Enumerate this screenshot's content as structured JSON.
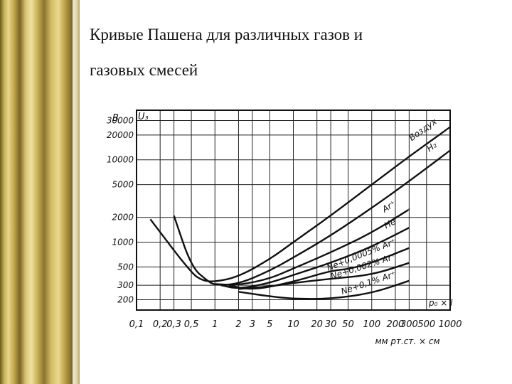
{
  "slide": {
    "title_line1": "Кривые Пашена для различных газов и",
    "title_line2": "газовых смесей"
  },
  "chart_data": {
    "type": "line",
    "title": "Кривые Пашена для различных газов и газовых смесей",
    "x_scale": "log",
    "y_scale": "log",
    "xlim": [
      0.1,
      1000
    ],
    "ylim": [
      150,
      40000
    ],
    "ylabel_unit": "В",
    "ylabel": "U₃",
    "xlabel_top": "p₀ × l",
    "xlabel_bottom": "мм рт.ст. × см",
    "x_ticks": [
      {
        "v": 0.1,
        "t": "0,1"
      },
      {
        "v": 0.2,
        "t": "0,2"
      },
      {
        "v": 0.3,
        "t": "0,3"
      },
      {
        "v": 0.5,
        "t": "0,5"
      },
      {
        "v": 1,
        "t": "1"
      },
      {
        "v": 2,
        "t": "2"
      },
      {
        "v": 3,
        "t": "3"
      },
      {
        "v": 5,
        "t": "5"
      },
      {
        "v": 10,
        "t": "10"
      },
      {
        "v": 20,
        "t": "20"
      },
      {
        "v": 30,
        "t": "30"
      },
      {
        "v": 50,
        "t": "50"
      },
      {
        "v": 100,
        "t": "100"
      },
      {
        "v": 200,
        "t": "200"
      },
      {
        "v": 300,
        "t": "300"
      },
      {
        "v": 500,
        "t": "500"
      },
      {
        "v": 1000,
        "t": "1000"
      }
    ],
    "y_ticks": [
      {
        "v": 200,
        "t": "200"
      },
      {
        "v": 300,
        "t": "300"
      },
      {
        "v": 500,
        "t": "500"
      },
      {
        "v": 1000,
        "t": "1000"
      },
      {
        "v": 2000,
        "t": "2000"
      },
      {
        "v": 5000,
        "t": "5000"
      },
      {
        "v": 10000,
        "t": "10000"
      },
      {
        "v": 20000,
        "t": "20000"
      },
      {
        "v": 30000,
        "t": "30000"
      }
    ],
    "grid": true,
    "series": [
      {
        "name": "Воздух",
        "x": [
          0.15,
          0.5,
          0.7,
          1,
          2,
          5,
          10,
          30,
          100,
          300,
          1000
        ],
        "y": [
          1900,
          420,
          340,
          330,
          380,
          620,
          1000,
          2100,
          5000,
          11000,
          25000
        ]
      },
      {
        "name": "H₂",
        "x": [
          0.3,
          0.5,
          0.8,
          1,
          2,
          5,
          10,
          30,
          100,
          300,
          1000
        ],
        "y": [
          2100,
          500,
          340,
          300,
          310,
          450,
          650,
          1200,
          2600,
          5500,
          13000
        ]
      },
      {
        "name": "Ar⁺",
        "x": [
          1,
          2,
          5,
          10,
          30,
          100,
          300
        ],
        "y": [
          310,
          300,
          360,
          480,
          750,
          1300,
          2500
        ]
      },
      {
        "name": "He",
        "x": [
          1.2,
          2,
          5,
          10,
          30,
          100,
          300
        ],
        "y": [
          300,
          270,
          320,
          400,
          560,
          880,
          1500
        ]
      },
      {
        "name": "Ne+0,0005% Ar⁺",
        "x": [
          1.5,
          3,
          10,
          30,
          50,
          100,
          300
        ],
        "y": [
          300,
          260,
          330,
          450,
          470,
          560,
          850
        ]
      },
      {
        "name": "Ne+0,002% Ar⁺",
        "x": [
          2,
          5,
          10,
          30,
          100,
          300
        ],
        "y": [
          270,
          290,
          320,
          360,
          400,
          560
        ]
      },
      {
        "name": "Ne+0,1% Ar⁺",
        "x": [
          2,
          5,
          10,
          30,
          100,
          300
        ],
        "y": [
          250,
          220,
          205,
          205,
          240,
          340
        ]
      }
    ]
  }
}
